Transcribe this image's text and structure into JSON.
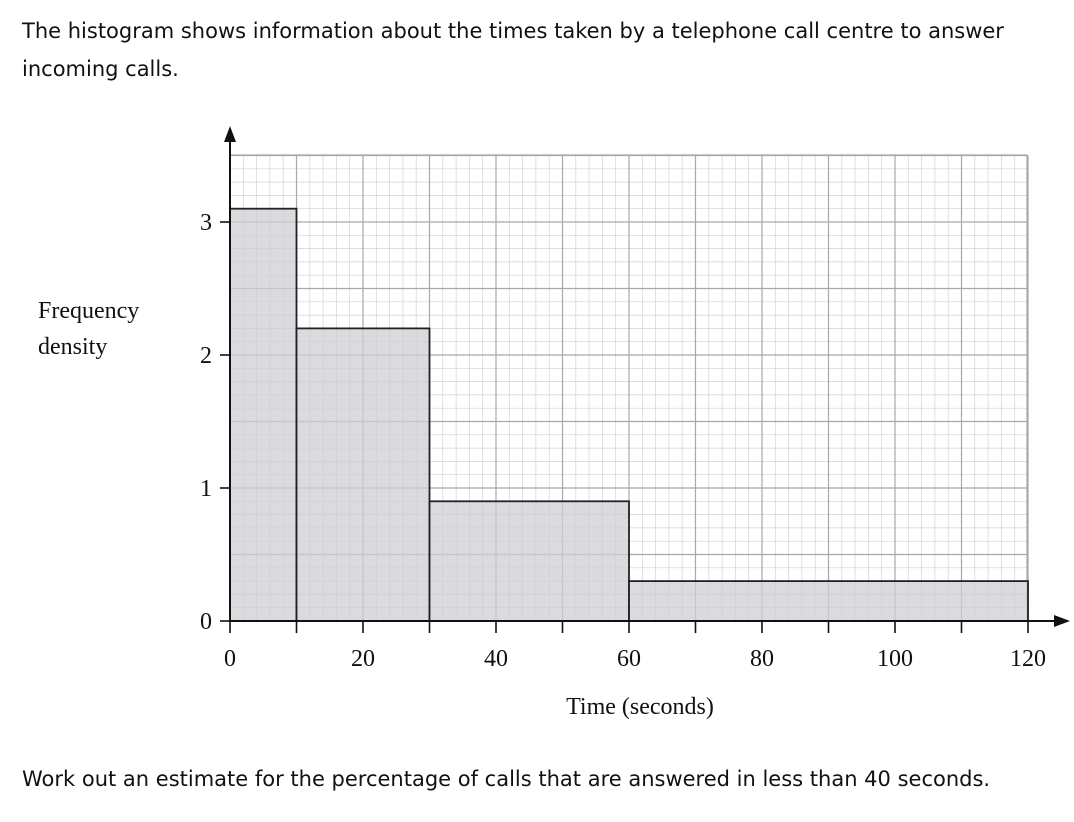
{
  "intro_text": "The histogram shows information about the times taken by a telephone call centre to answer incoming calls.",
  "question_text": "Work out an estimate for the percentage of calls that are answered in less than 40 seconds.",
  "chart_data": {
    "type": "bar",
    "subtype": "histogram",
    "title": "",
    "xlabel": "Time (seconds)",
    "ylabel": "Frequency density",
    "xlim": [
      0,
      120
    ],
    "ylim": [
      0,
      3.5
    ],
    "x_ticks": [
      0,
      20,
      40,
      60,
      80,
      100,
      120
    ],
    "y_ticks": [
      0,
      1,
      2,
      3
    ],
    "grid": true,
    "bins": [
      {
        "from": 0,
        "to": 10,
        "value": 3.1
      },
      {
        "from": 10,
        "to": 30,
        "value": 2.2
      },
      {
        "from": 30,
        "to": 60,
        "value": 0.9
      },
      {
        "from": 60,
        "to": 120,
        "value": 0.3
      }
    ],
    "colors": {
      "bar_fill": "#cfcfd4",
      "grid_major": "#a8a8a8",
      "grid_minor": "#d2d2d2",
      "axis": "#111111"
    }
  }
}
